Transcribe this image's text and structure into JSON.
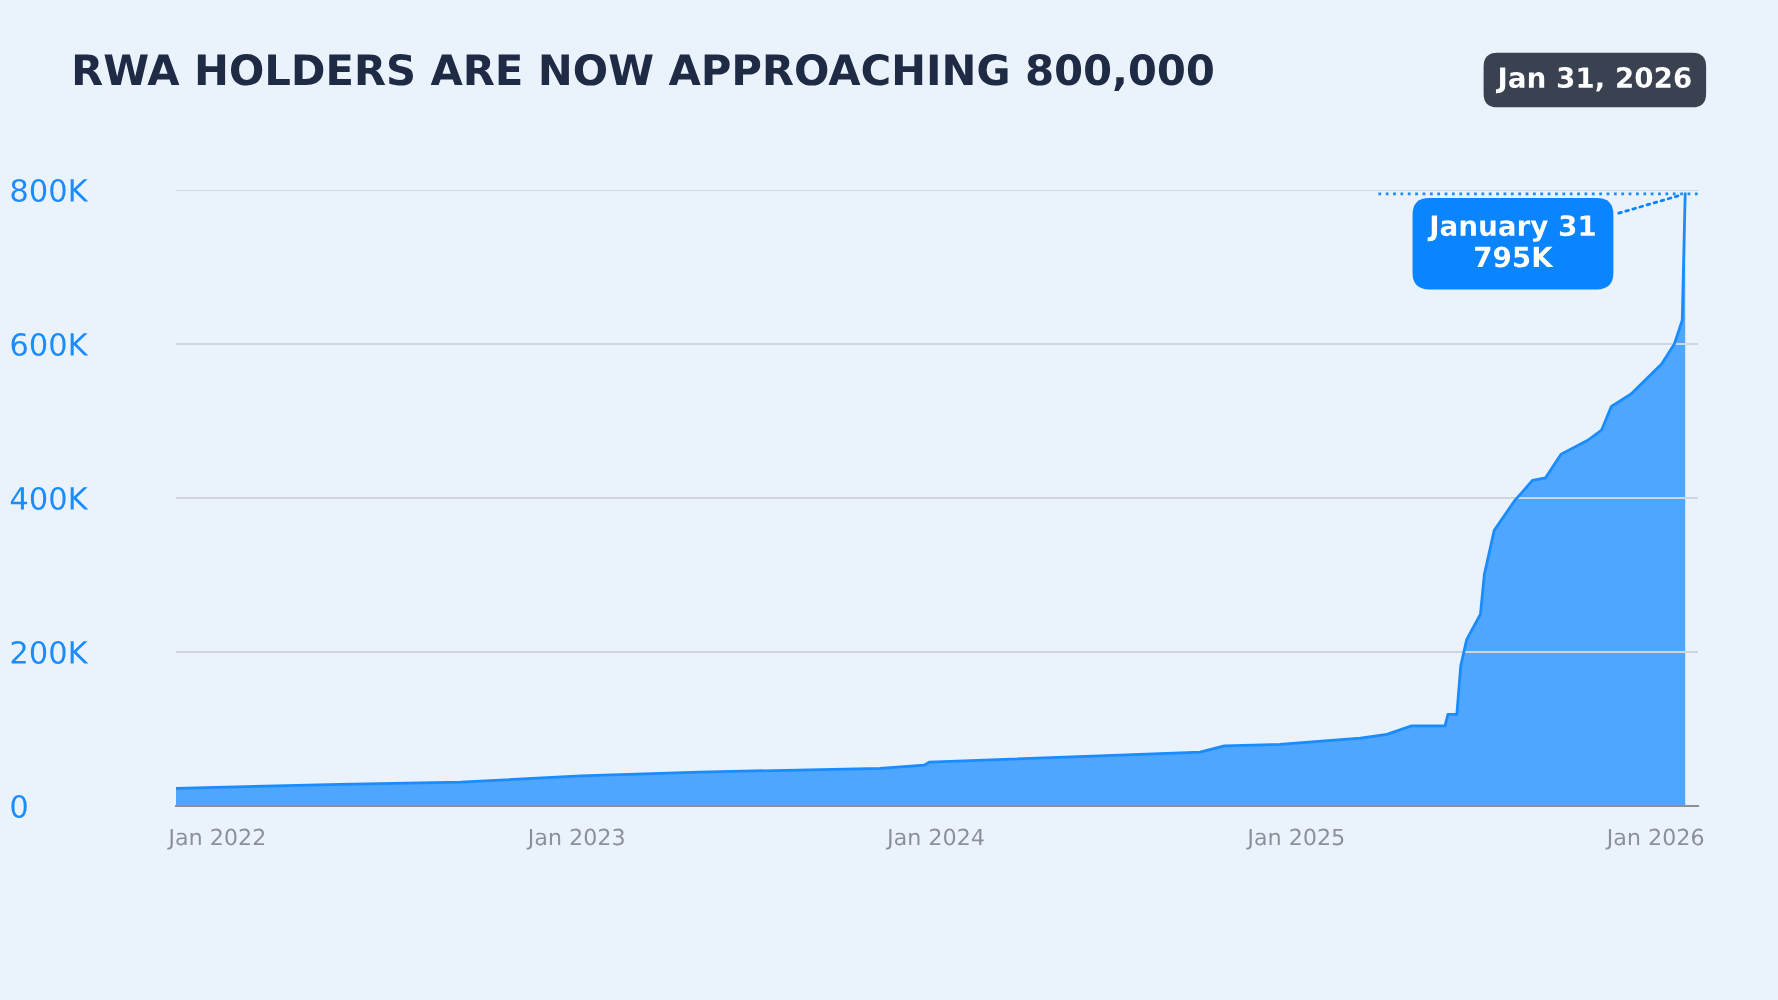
{
  "chart_data": {
    "type": "area",
    "title": "RWA HOLDERS ARE NOW APPROACHING 800,000",
    "x": [
      "2021-11-20",
      "2022-05-05",
      "2022-09-05",
      "2023-01-05",
      "2023-05-05",
      "2023-11-05",
      "2023-12-20",
      "2023-12-25",
      "2024-06-15",
      "2024-09-25",
      "2024-10-20",
      "2024-12-15",
      "2025-03-07",
      "2025-04-03",
      "2025-04-28",
      "2025-06-01",
      "2025-06-04",
      "2025-06-13",
      "2025-06-17",
      "2025-06-23",
      "2025-07-07",
      "2025-07-11",
      "2025-07-21",
      "2025-08-11",
      "2025-08-29",
      "2025-09-11",
      "2025-09-27",
      "2025-10-24",
      "2025-11-07",
      "2025-11-17",
      "2025-12-07",
      "2026-01-07",
      "2026-01-20",
      "2026-01-28",
      "2026-01-31"
    ],
    "series": [
      {
        "color": "#1a8cff",
        "values": [
          23000,
          28000,
          31000,
          39000,
          44000,
          49000,
          53000,
          57000,
          65000,
          70000,
          78000,
          80000,
          88000,
          93000,
          104000,
          104000,
          119000,
          119000,
          182000,
          216000,
          249000,
          301000,
          358000,
          397000,
          423000,
          426000,
          457000,
          475000,
          488000,
          519000,
          535000,
          574000,
          600000,
          631000,
          795000
        ]
      }
    ],
    "xlim": [
      "2021-11-20",
      "2026-02-13"
    ],
    "xticks": [
      {
        "value": "2022-01-01",
        "label": "Jan 2022"
      },
      {
        "value": "2023-01-01",
        "label": "Jan 2023"
      },
      {
        "value": "2024-01-01",
        "label": "Jan 2024"
      },
      {
        "value": "2025-01-01",
        "label": "Jan 2025"
      },
      {
        "value": "2026-01-01",
        "label": "Jan 2026"
      }
    ],
    "ylim": [
      0,
      800000
    ],
    "yticks": [
      {
        "value": 0,
        "label": "0"
      },
      {
        "value": 200000,
        "label": "200K"
      },
      {
        "value": 400000,
        "label": "400K"
      },
      {
        "value": 600000,
        "label": "600K"
      },
      {
        "value": 800000,
        "label": "800K"
      }
    ],
    "grid": "y",
    "ref_lines": [
      {
        "axis": "y",
        "value": 795000,
        "color": "#1a8cff",
        "line_style": "dotted"
      }
    ],
    "annotations": [
      "Jan 31, 2026",
      {
        "text": "January 31\n795K",
        "x": "2026-01-31",
        "y": 795000
      }
    ]
  }
}
